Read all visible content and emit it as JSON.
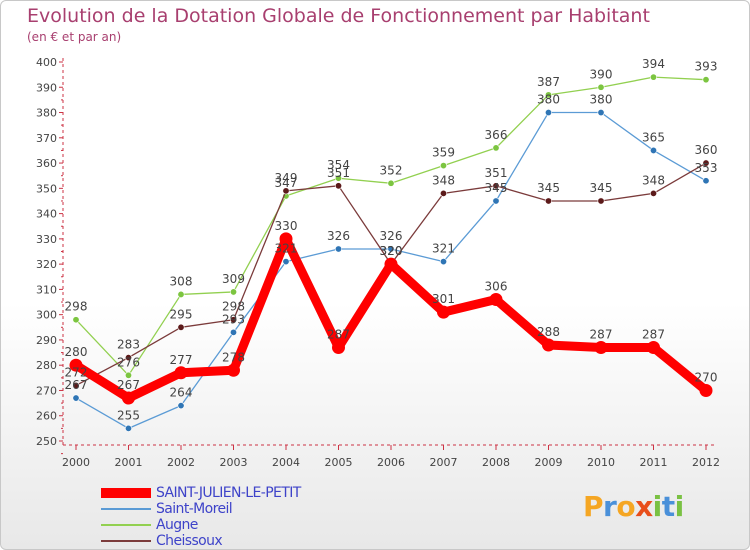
{
  "title": "Evolution de la Dotation Globale de Fonctionnement par Habitant",
  "subtitle": "(en € et par an)",
  "chart_data": {
    "type": "line",
    "title": "Evolution de la Dotation Globale de Fonctionnement par Habitant",
    "subtitle": "(en € et par an)",
    "xlabel": "",
    "ylabel": "",
    "ylim": [
      250,
      400
    ],
    "ytick_step": 10,
    "grid": false,
    "legend_position": "bottom-left",
    "x": [
      "2000",
      "2001",
      "2002",
      "2003",
      "2004",
      "2005",
      "2006",
      "2007",
      "2008",
      "2009",
      "2010",
      "2011",
      "2012"
    ],
    "series": [
      {
        "name": "SAINT-JULIEN-LE-PETIT",
        "color": "#ff0000",
        "highlight": true,
        "values": [
          280,
          267,
          277,
          278,
          330,
          287,
          320,
          301,
          306,
          288,
          287,
          287,
          270
        ]
      },
      {
        "name": "Saint-Moreil",
        "color": "#5b9bd5",
        "marker": "#2f75b5",
        "highlight": false,
        "values": [
          267,
          255,
          264,
          293,
          321,
          326,
          326,
          321,
          345,
          380,
          380,
          365,
          353
        ]
      },
      {
        "name": "Augne",
        "color": "#92d050",
        "marker": "#7cc540",
        "highlight": false,
        "values": [
          298,
          276,
          308,
          309,
          347,
          354,
          352,
          359,
          366,
          387,
          390,
          394,
          393
        ]
      },
      {
        "name": "Cheissoux",
        "color": "#7b3b3b",
        "marker": "#5c1a1a",
        "highlight": false,
        "values": [
          272,
          283,
          295,
          298,
          349,
          351,
          320,
          348,
          351,
          345,
          345,
          348,
          360
        ]
      }
    ]
  },
  "logo": {
    "text": "Proxiti",
    "letters": [
      {
        "ch": "P",
        "color": "#f5a623"
      },
      {
        "ch": "r",
        "color": "#4a90d9"
      },
      {
        "ch": "o",
        "color": "#f5a623"
      },
      {
        "ch": "x",
        "color": "#e84e1b"
      },
      {
        "ch": "i",
        "color": "#7ac143"
      },
      {
        "ch": "t",
        "color": "#4a90d9"
      },
      {
        "ch": "i",
        "color": "#7ac143"
      }
    ]
  }
}
